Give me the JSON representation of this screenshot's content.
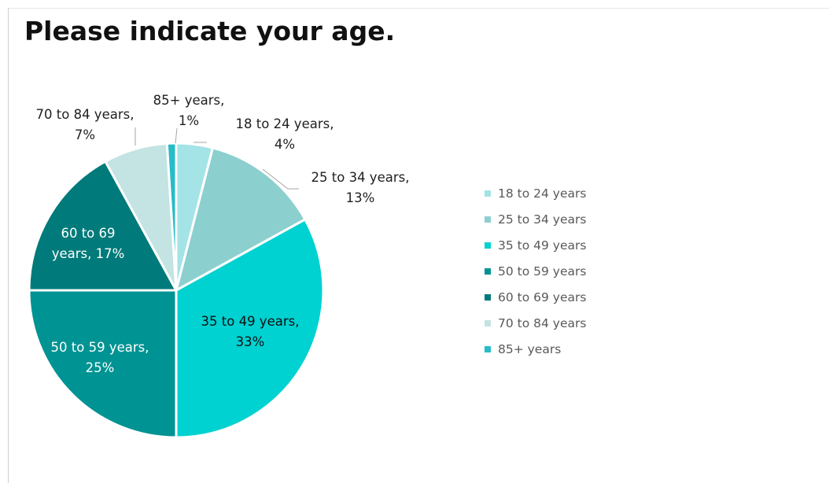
{
  "chart_data": {
    "type": "pie",
    "title": "Please indicate your age.",
    "categories": [
      "18 to 24 years",
      "25 to 34 years",
      "35 to 49 years",
      "50 to 59 years",
      "60 to 69 years",
      "70 to 84 years",
      "85+ years"
    ],
    "values": [
      4,
      13,
      33,
      25,
      17,
      7,
      1
    ],
    "data_labels": [
      [
        "18 to 24 years,",
        "4%"
      ],
      [
        "25 to 34 years,",
        "13%"
      ],
      [
        "35 to 49 years,",
        "33%"
      ],
      [
        "50 to 59 years,",
        "25%"
      ],
      [
        "60 to 69",
        "years, 17%"
      ],
      [
        "70 to 84 years,",
        "7%"
      ],
      [
        "85+ years,",
        "1%"
      ]
    ],
    "colors": [
      "#a4e3e6",
      "#8ccfcf",
      "#00d1d1",
      "#009393",
      "#007a7a",
      "#c4e3e3",
      "#26bcc8"
    ],
    "legend_position": "right"
  }
}
